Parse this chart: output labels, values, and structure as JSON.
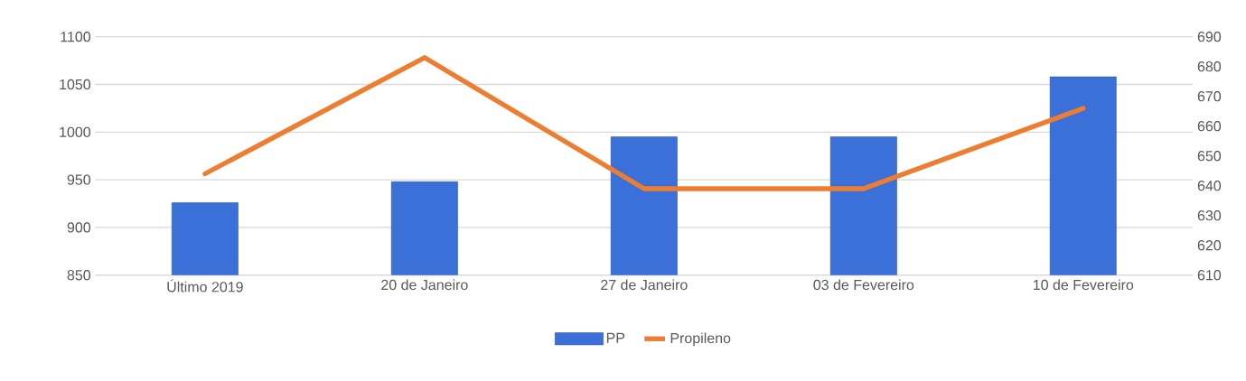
{
  "chart_data": {
    "type": "bar",
    "categories": [
      "Último 2019",
      "20 de Janeiro",
      "27 de Janeiro",
      "03 de Fevereiro",
      "10 de Fevereiro"
    ],
    "series": [
      {
        "name": "PP",
        "color": "#3a70d8",
        "values": [
          926,
          948,
          995,
          995,
          1058
        ]
      },
      {
        "name": "Propileno",
        "type": "line",
        "axis": "y2",
        "color": "#ed7d31",
        "values": [
          644,
          683,
          639,
          639,
          666
        ]
      }
    ],
    "ylim": [
      850,
      1100
    ],
    "yticks": [
      850,
      900,
      950,
      1000,
      1050,
      1100
    ],
    "y2lim": [
      610,
      690
    ],
    "y2ticks": [
      610,
      620,
      630,
      640,
      650,
      660,
      670,
      680,
      690
    ],
    "grid": "y",
    "legend": "bottom"
  }
}
